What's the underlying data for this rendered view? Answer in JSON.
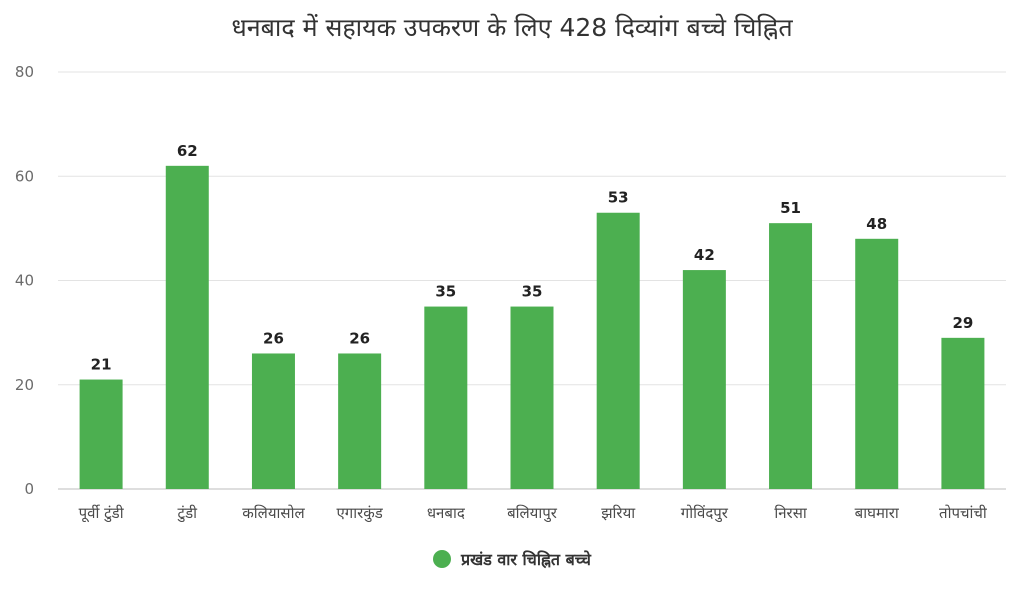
{
  "chart_data": {
    "type": "bar",
    "title": "धनबाद में सहायक उपकरण के लिए 428 दिव्यांग बच्चे चिह्नित",
    "categories": [
      "पूर्वी टुंडी",
      "टुंडी",
      "कलियासोल",
      "एगारकुंड",
      "धनबाद",
      "बलियापुर",
      "झरिया",
      "गोविंदपुर",
      "निरसा",
      "बाघमारा",
      "तोपचांची"
    ],
    "series": [
      {
        "name": "प्रखंड वार चिह्नित बच्चे",
        "values": [
          21,
          62,
          26,
          26,
          35,
          35,
          53,
          42,
          51,
          48,
          29
        ],
        "color": "#4caf50"
      }
    ],
    "ylim": [
      0,
      80
    ],
    "yticks": [
      0,
      20,
      40,
      60,
      80
    ],
    "grid": true,
    "legend_position": "bottom-center",
    "data_labels": true
  }
}
